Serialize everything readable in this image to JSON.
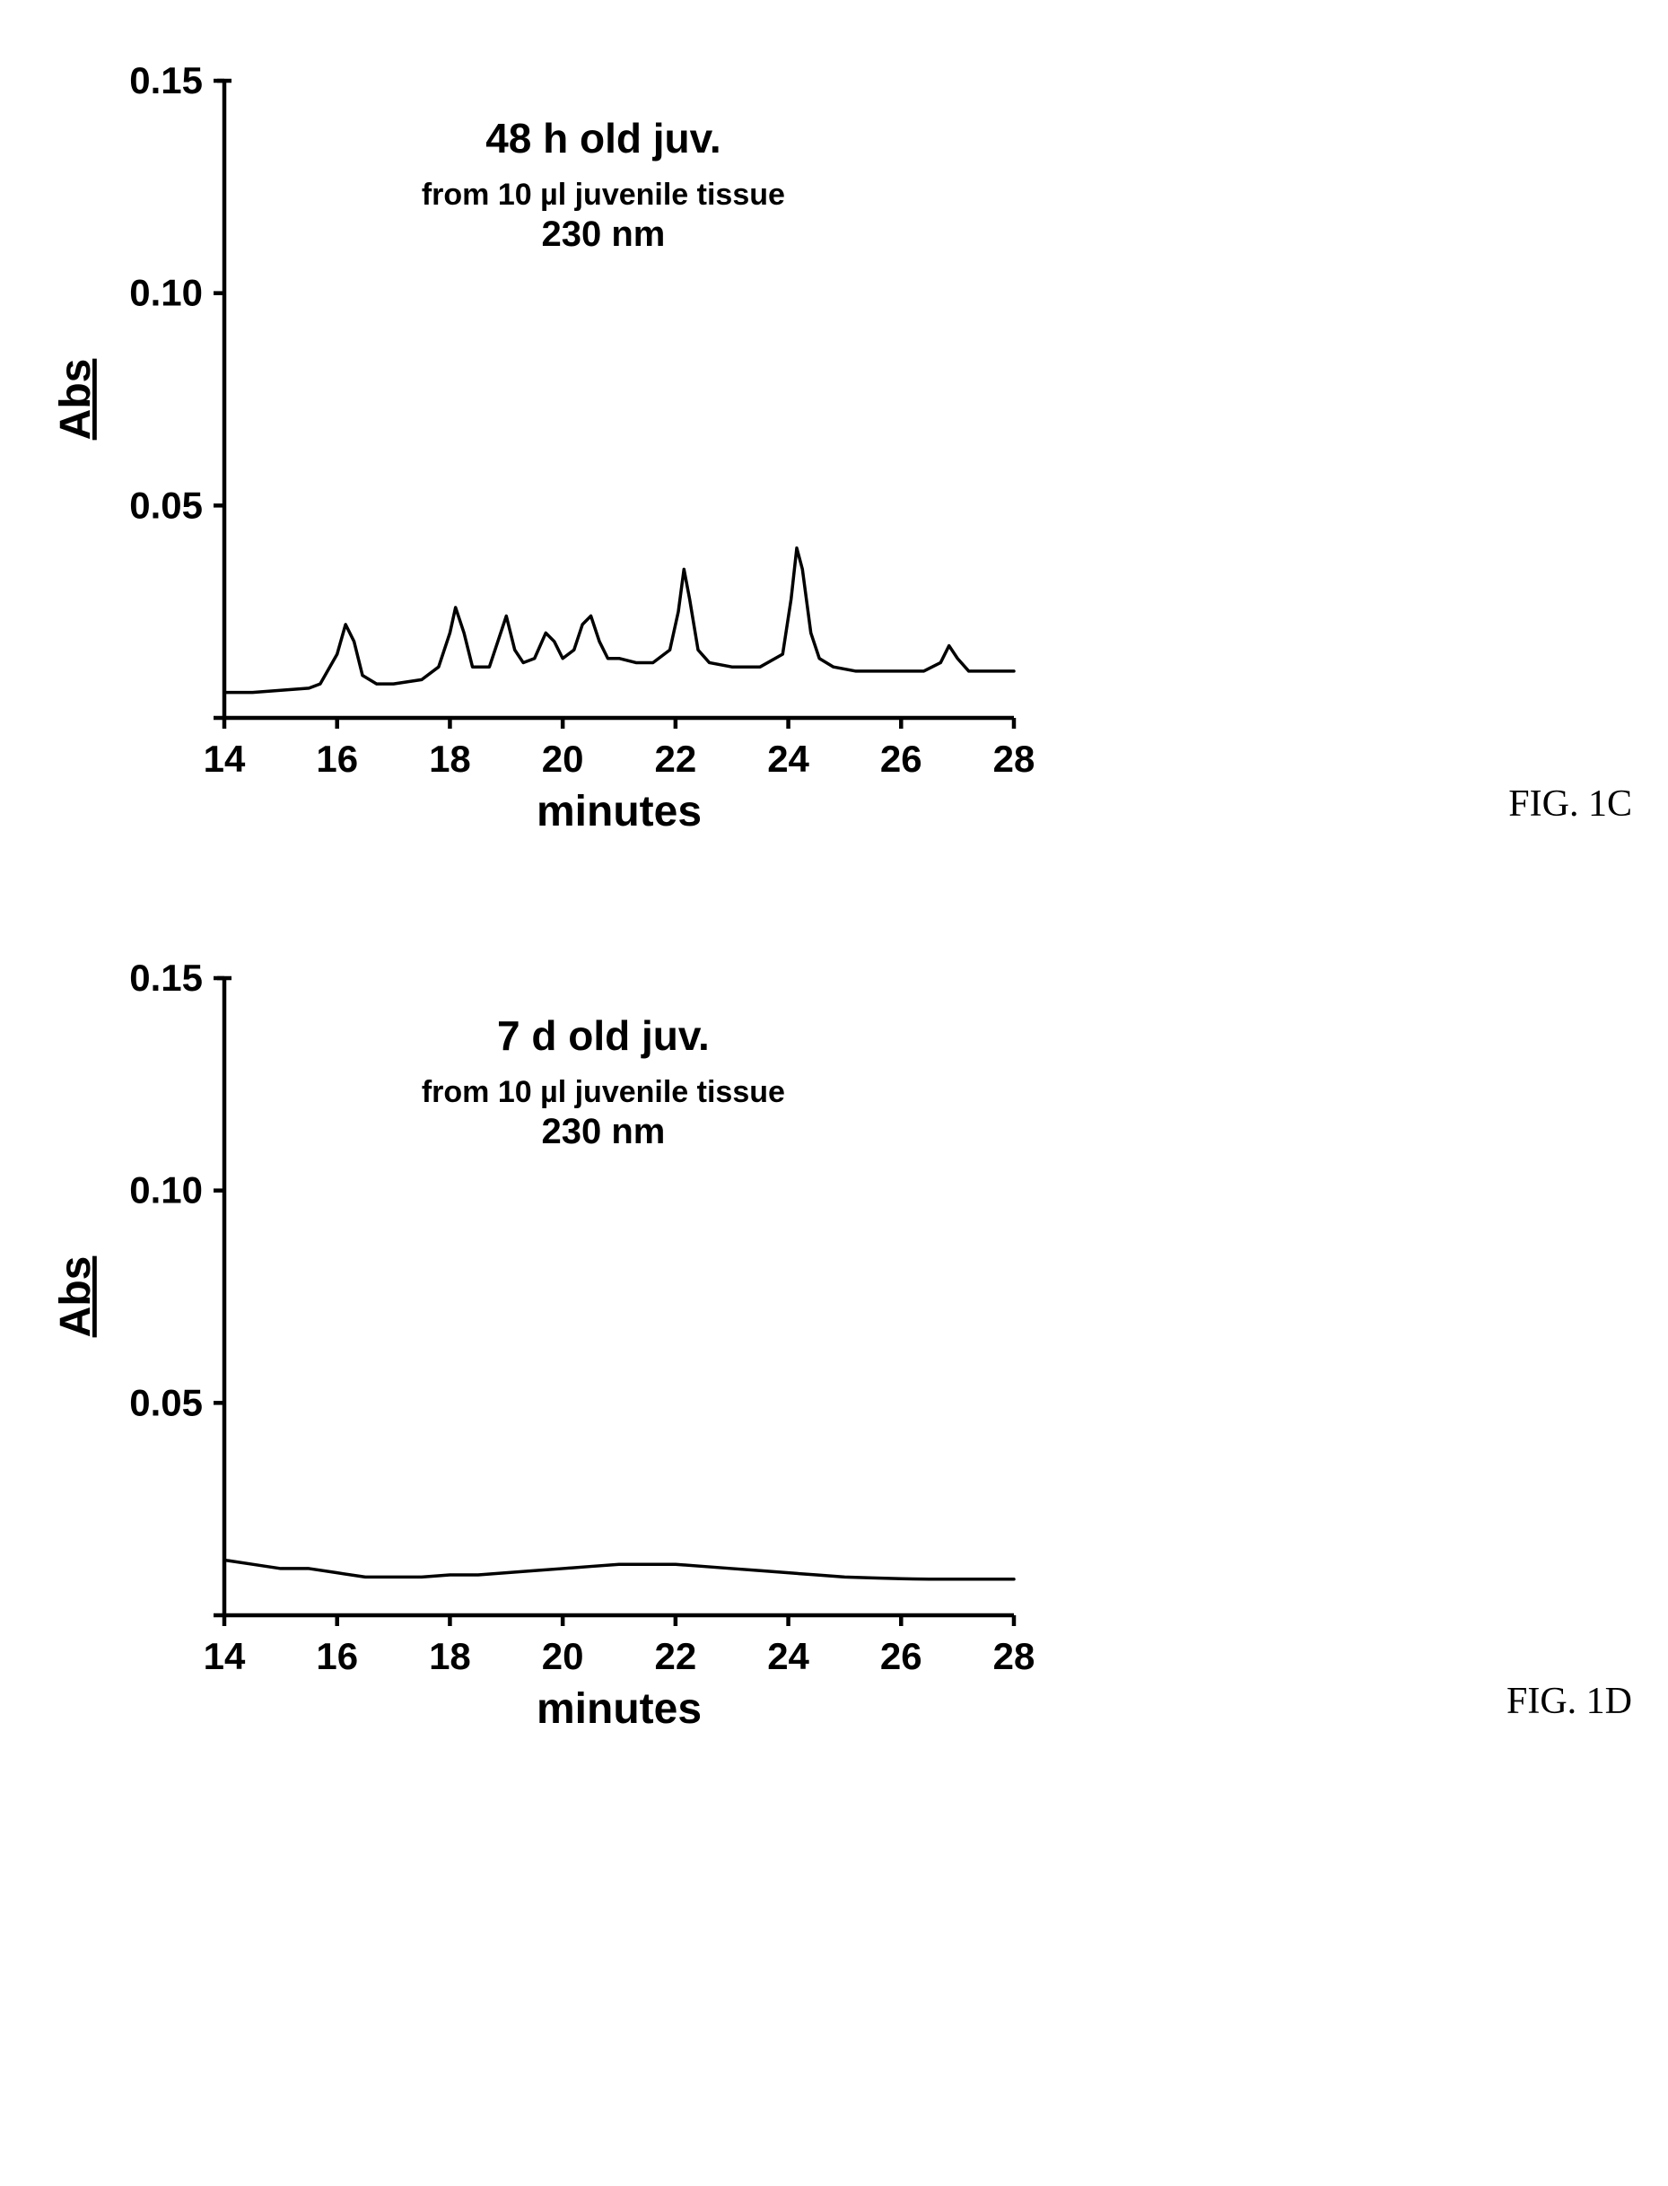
{
  "figures": [
    {
      "label": "FIG. 1C",
      "chart": {
        "type": "line",
        "xlabel": "minutes",
        "ylabel": "Abs",
        "xlim": [
          14,
          28
        ],
        "ylim": [
          0,
          0.15
        ],
        "xtick_step": 2,
        "ytick_step": 0.05,
        "xtick_labels": [
          "14",
          "16",
          "18",
          "20",
          "22",
          "24",
          "26",
          "28"
        ],
        "ytick_labels": [
          "",
          "0.05",
          "0.10",
          "0.15"
        ],
        "title_lines": [
          {
            "text": "48 h old juv.",
            "fontsize": 46,
            "weight": "bold"
          },
          {
            "text": "from 10 µl juvenile tissue",
            "fontsize": 34,
            "weight": "bold"
          },
          {
            "text": "230 nm",
            "fontsize": 40,
            "weight": "bold"
          }
        ],
        "label_fontsize": 48,
        "tick_fontsize": 42,
        "line_color": "#000000",
        "axis_color": "#000000",
        "background_color": "#ffffff",
        "line_width": 3.5,
        "axis_width": 4.5,
        "tick_length": 12,
        "data": [
          [
            14.0,
            0.006
          ],
          [
            14.5,
            0.006
          ],
          [
            15.0,
            0.0065
          ],
          [
            15.5,
            0.007
          ],
          [
            15.7,
            0.008
          ],
          [
            16.0,
            0.015
          ],
          [
            16.15,
            0.022
          ],
          [
            16.3,
            0.018
          ],
          [
            16.45,
            0.01
          ],
          [
            16.7,
            0.008
          ],
          [
            17.0,
            0.008
          ],
          [
            17.5,
            0.009
          ],
          [
            17.8,
            0.012
          ],
          [
            18.0,
            0.02
          ],
          [
            18.1,
            0.026
          ],
          [
            18.25,
            0.02
          ],
          [
            18.4,
            0.012
          ],
          [
            18.7,
            0.012
          ],
          [
            18.85,
            0.018
          ],
          [
            19.0,
            0.024
          ],
          [
            19.15,
            0.016
          ],
          [
            19.3,
            0.013
          ],
          [
            19.5,
            0.014
          ],
          [
            19.7,
            0.02
          ],
          [
            19.85,
            0.018
          ],
          [
            20.0,
            0.014
          ],
          [
            20.2,
            0.016
          ],
          [
            20.35,
            0.022
          ],
          [
            20.5,
            0.024
          ],
          [
            20.65,
            0.018
          ],
          [
            20.8,
            0.014
          ],
          [
            21.0,
            0.014
          ],
          [
            21.3,
            0.013
          ],
          [
            21.6,
            0.013
          ],
          [
            21.9,
            0.016
          ],
          [
            22.05,
            0.025
          ],
          [
            22.15,
            0.035
          ],
          [
            22.25,
            0.028
          ],
          [
            22.4,
            0.016
          ],
          [
            22.6,
            0.013
          ],
          [
            23.0,
            0.012
          ],
          [
            23.5,
            0.012
          ],
          [
            23.9,
            0.015
          ],
          [
            24.05,
            0.028
          ],
          [
            24.15,
            0.04
          ],
          [
            24.25,
            0.035
          ],
          [
            24.4,
            0.02
          ],
          [
            24.55,
            0.014
          ],
          [
            24.8,
            0.012
          ],
          [
            25.2,
            0.011
          ],
          [
            25.6,
            0.011
          ],
          [
            26.0,
            0.011
          ],
          [
            26.4,
            0.011
          ],
          [
            26.7,
            0.013
          ],
          [
            26.85,
            0.017
          ],
          [
            27.0,
            0.014
          ],
          [
            27.2,
            0.011
          ],
          [
            27.6,
            0.011
          ],
          [
            28.0,
            0.011
          ]
        ]
      }
    },
    {
      "label": "FIG. 1D",
      "chart": {
        "type": "line",
        "xlabel": "minutes",
        "ylabel": "Abs",
        "xlim": [
          14,
          28
        ],
        "ylim": [
          0,
          0.15
        ],
        "xtick_step": 2,
        "ytick_step": 0.05,
        "xtick_labels": [
          "14",
          "16",
          "18",
          "20",
          "22",
          "24",
          "26",
          "28"
        ],
        "ytick_labels": [
          "",
          "0.05",
          "0.10",
          "0.15"
        ],
        "title_lines": [
          {
            "text": "7 d old juv.",
            "fontsize": 46,
            "weight": "bold"
          },
          {
            "text": "from 10 µl juvenile tissue",
            "fontsize": 34,
            "weight": "bold"
          },
          {
            "text": "230 nm",
            "fontsize": 40,
            "weight": "bold"
          }
        ],
        "label_fontsize": 48,
        "tick_fontsize": 42,
        "line_color": "#000000",
        "axis_color": "#000000",
        "background_color": "#ffffff",
        "line_width": 3.5,
        "axis_width": 4.5,
        "tick_length": 12,
        "data": [
          [
            14.0,
            0.013
          ],
          [
            14.5,
            0.012
          ],
          [
            15.0,
            0.011
          ],
          [
            15.5,
            0.011
          ],
          [
            16.0,
            0.01
          ],
          [
            16.5,
            0.009
          ],
          [
            17.0,
            0.009
          ],
          [
            17.5,
            0.009
          ],
          [
            18.0,
            0.0095
          ],
          [
            18.5,
            0.0095
          ],
          [
            19.0,
            0.01
          ],
          [
            19.5,
            0.0105
          ],
          [
            20.0,
            0.011
          ],
          [
            20.5,
            0.0115
          ],
          [
            21.0,
            0.012
          ],
          [
            21.5,
            0.012
          ],
          [
            22.0,
            0.012
          ],
          [
            22.5,
            0.0115
          ],
          [
            23.0,
            0.011
          ],
          [
            23.5,
            0.0105
          ],
          [
            24.0,
            0.01
          ],
          [
            24.5,
            0.0095
          ],
          [
            25.0,
            0.009
          ],
          [
            25.5,
            0.0088
          ],
          [
            26.0,
            0.0086
          ],
          [
            26.5,
            0.0085
          ],
          [
            27.0,
            0.0085
          ],
          [
            27.5,
            0.0085
          ],
          [
            28.0,
            0.0085
          ]
        ]
      }
    }
  ]
}
